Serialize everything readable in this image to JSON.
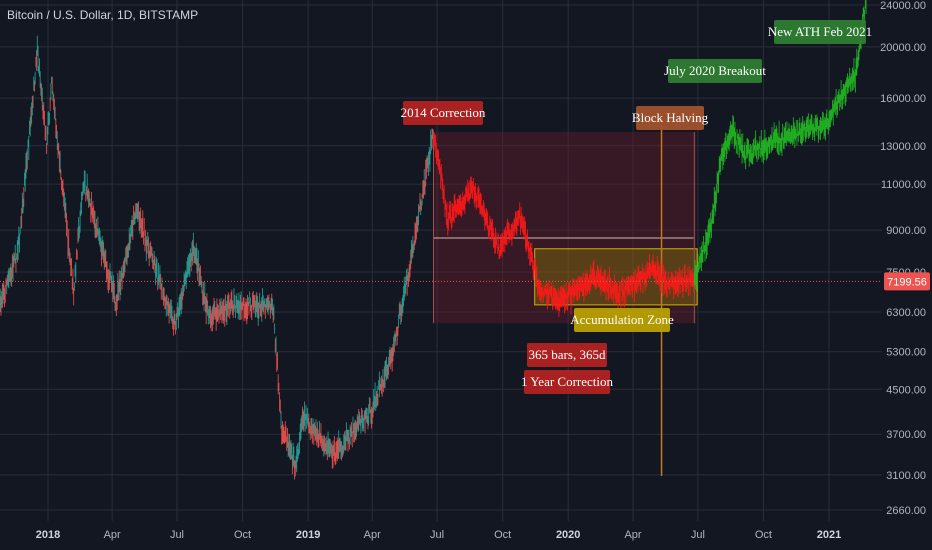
{
  "header": {
    "title": "Bitcoin / U.S. Dollar, 1D, BITSTAMP"
  },
  "chart_data": {
    "type": "candlestick",
    "title": "Bitcoin / U.S. Dollar, 1D, BITSTAMP",
    "y_scale": "log",
    "ylim": [
      2500,
      25000
    ],
    "x_range": [
      "2017-09-01",
      "2021-02-22"
    ],
    "grid": true,
    "y_tick_labels": [
      "24000.00",
      "20000.00",
      "16000.00",
      "13000.00",
      "11000.00",
      "9000.00",
      "7500.00",
      "6300.00",
      "5300.00",
      "4500.00",
      "3700.00",
      "3100.00",
      "2660.00"
    ],
    "y_tick_values": [
      24000,
      20000,
      16000,
      13000,
      11000,
      9000,
      7500,
      6300,
      5300,
      4500,
      3700,
      3100,
      2660
    ],
    "x_tick_labels": [
      "2018",
      "Apr",
      "Jul",
      "Oct",
      "2019",
      "Apr",
      "Jul",
      "Oct",
      "2020",
      "Apr",
      "Jul",
      "Oct",
      "2021"
    ],
    "x_tick_dates": [
      "2018-01-01",
      "2018-04-01",
      "2018-07-01",
      "2018-10-01",
      "2019-01-01",
      "2019-04-01",
      "2019-07-01",
      "2019-10-01",
      "2020-01-01",
      "2020-04-01",
      "2020-07-01",
      "2020-10-01",
      "2021-01-01"
    ],
    "current_price": {
      "label": "7199.56",
      "value": 7199.56
    },
    "price_path": [
      {
        "date": "2017-09-01",
        "price": 4700
      },
      {
        "date": "2017-10-15",
        "price": 5800
      },
      {
        "date": "2017-11-20",
        "price": 8200
      },
      {
        "date": "2017-12-17",
        "price": 19600
      },
      {
        "date": "2017-12-30",
        "price": 13000
      },
      {
        "date": "2018-01-06",
        "price": 17000
      },
      {
        "date": "2018-02-06",
        "price": 6900
      },
      {
        "date": "2018-02-20",
        "price": 11200
      },
      {
        "date": "2018-04-06",
        "price": 6600
      },
      {
        "date": "2018-05-05",
        "price": 9800
      },
      {
        "date": "2018-06-28",
        "price": 5900
      },
      {
        "date": "2018-07-24",
        "price": 8400
      },
      {
        "date": "2018-08-14",
        "price": 6200
      },
      {
        "date": "2018-09-20",
        "price": 6500
      },
      {
        "date": "2018-11-13",
        "price": 6400
      },
      {
        "date": "2018-11-25",
        "price": 3800
      },
      {
        "date": "2018-12-15",
        "price": 3200
      },
      {
        "date": "2018-12-25",
        "price": 4000
      },
      {
        "date": "2019-02-07",
        "price": 3400
      },
      {
        "date": "2019-03-31",
        "price": 4100
      },
      {
        "date": "2019-04-30",
        "price": 5300
      },
      {
        "date": "2019-05-30",
        "price": 8600
      },
      {
        "date": "2019-06-26",
        "price": 13800
      },
      {
        "date": "2019-07-16",
        "price": 9400
      },
      {
        "date": "2019-08-20",
        "price": 10800
      },
      {
        "date": "2019-09-25",
        "price": 8300
      },
      {
        "date": "2019-10-26",
        "price": 9500
      },
      {
        "date": "2019-11-22",
        "price": 7000
      },
      {
        "date": "2019-12-18",
        "price": 6600
      },
      {
        "date": "2020-02-13",
        "price": 7400
      },
      {
        "date": "2020-03-12",
        "price": 6800
      },
      {
        "date": "2020-04-29",
        "price": 7600
      },
      {
        "date": "2020-05-20",
        "price": 7100
      },
      {
        "date": "2020-06-26",
        "price": 7300
      },
      {
        "date": "2020-07-20",
        "price": 9200
      },
      {
        "date": "2020-08-01",
        "price": 12000
      },
      {
        "date": "2020-08-17",
        "price": 14000
      },
      {
        "date": "2020-09-05",
        "price": 12500
      },
      {
        "date": "2020-10-08",
        "price": 13200
      },
      {
        "date": "2020-11-10",
        "price": 13700
      },
      {
        "date": "2020-12-10",
        "price": 14000
      },
      {
        "date": "2021-01-01",
        "price": 14400
      },
      {
        "date": "2021-01-12",
        "price": 15500
      },
      {
        "date": "2021-02-08",
        "price": 18000
      },
      {
        "date": "2021-02-22",
        "price": 24500
      }
    ],
    "annotations": [
      {
        "id": "correction-2014",
        "text": "2014 Correction",
        "color": "#b22222"
      },
      {
        "id": "block-halving",
        "text": "Block Halving",
        "color": "#a0522d"
      },
      {
        "id": "july-breakout",
        "text": "July 2020 Breakout",
        "color": "#2e7d32"
      },
      {
        "id": "new-ath",
        "text": "New ATH Feb 2021",
        "color": "#2e7d32"
      },
      {
        "id": "accumulation-zone",
        "text": "Accumulation Zone",
        "color": "#b8a000"
      },
      {
        "id": "bars-count",
        "text": "365 bars, 365d",
        "color": "#b22222"
      },
      {
        "id": "one-year-correction",
        "text": "1 Year Correction",
        "color": "#b22222"
      }
    ],
    "colors": {
      "background": "#131722",
      "grid": "#2a2e39",
      "candle_up": "#26a69a",
      "candle_down": "#ef5350",
      "path_red": "#ff1a1a",
      "path_green": "#22bb22",
      "accum_fill": "#9c8a00",
      "correction_fill": "#7a1a2a",
      "price_line": "#ef5350"
    }
  }
}
